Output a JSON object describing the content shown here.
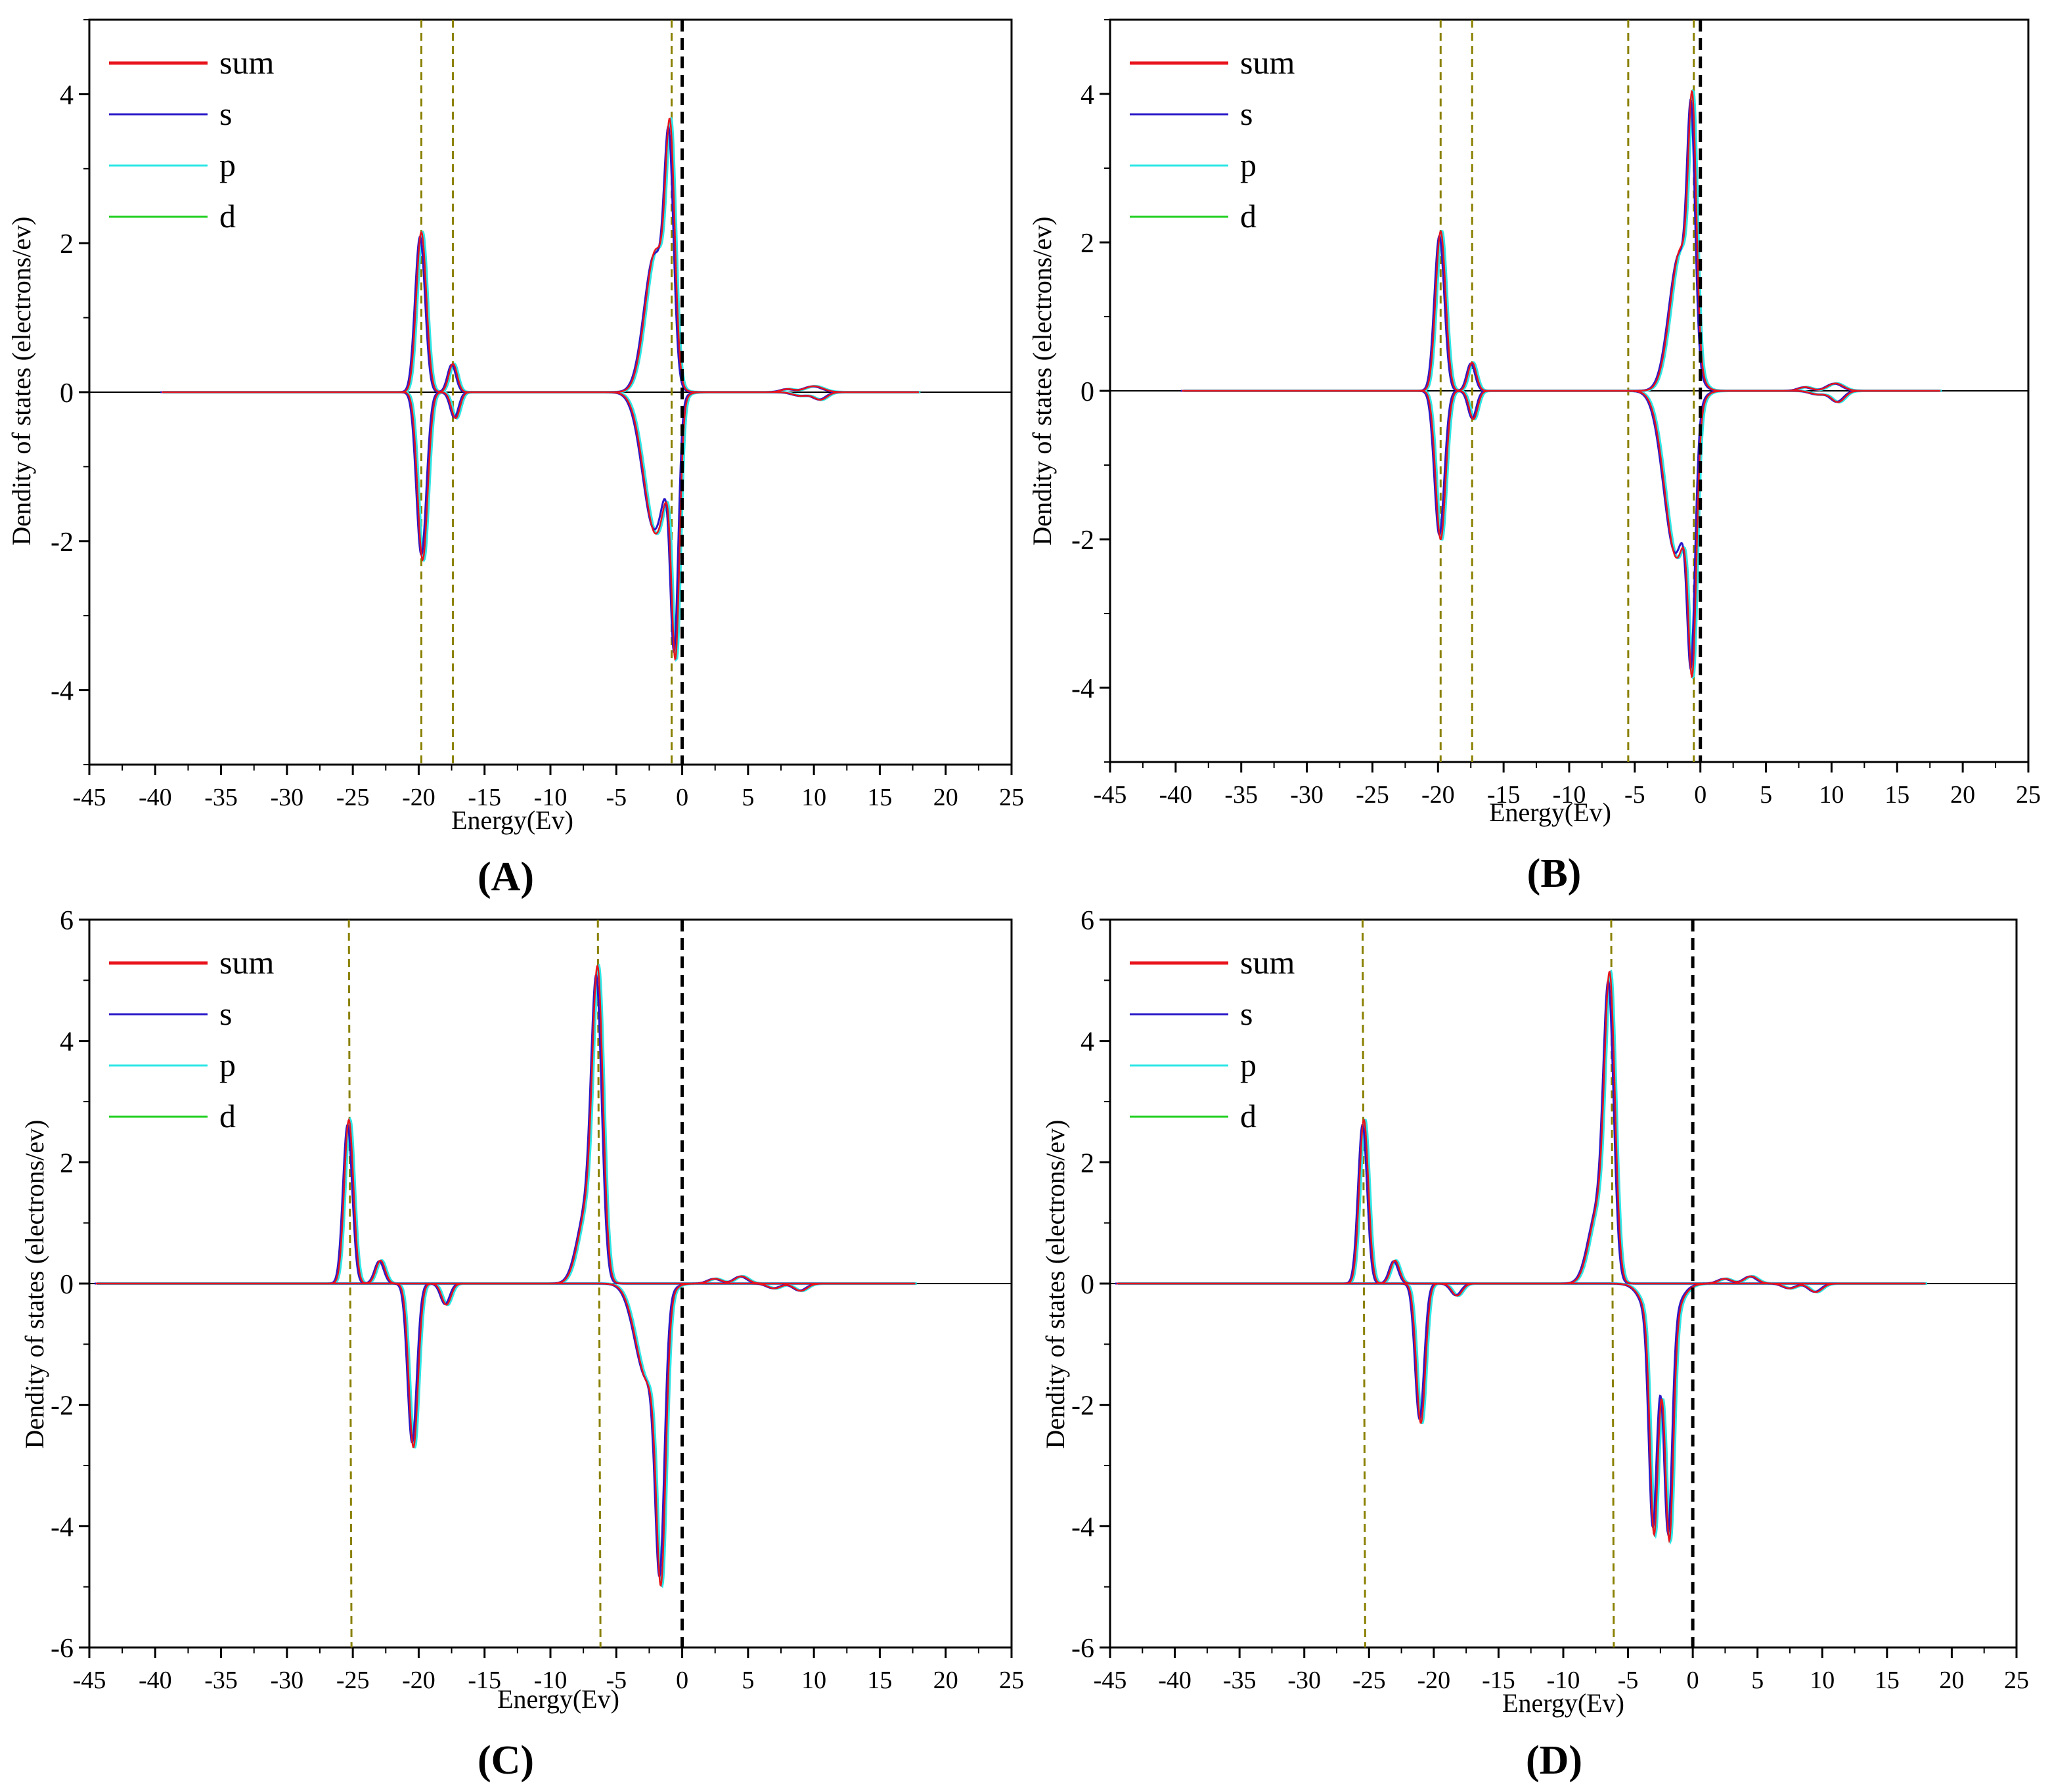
{
  "figure": {
    "colors": {
      "sum": "#e8141c",
      "s": "#2a18c8",
      "p": "#2ee6e6",
      "d": "#20d020",
      "marker": "#8a8000",
      "fermi": "#000000",
      "axis": "#000000"
    },
    "legend_labels": [
      "sum",
      "s",
      "p",
      "d"
    ]
  },
  "chart_data": [
    {
      "id": "A",
      "panel_label": "(A)",
      "type": "line",
      "xlabel": "Energy(Ev)",
      "ylabel": "Dendity of states (electrons/ev)",
      "xlim": [
        -45,
        25
      ],
      "ylim": [
        -5,
        5
      ],
      "xticks": [
        -45,
        -40,
        -35,
        -30,
        -25,
        -20,
        -15,
        -10,
        -5,
        0,
        5,
        10,
        15,
        20,
        25
      ],
      "yticks": [
        -4,
        -2,
        0,
        2,
        4
      ],
      "x_range": [
        -39.5,
        18.0
      ],
      "marker_lines": [
        -19.8,
        -17.4,
        -0.8
      ],
      "fermi_level": 0,
      "peaks_up": [
        {
          "center": -19.8,
          "height": 2.15,
          "width": 0.38
        },
        {
          "center": -17.4,
          "height": 0.38,
          "width": 0.32
        },
        {
          "center": -2.0,
          "height": 1.9,
          "width": 0.8
        },
        {
          "center": -0.9,
          "height": 2.9,
          "width": 0.35
        },
        {
          "center": 8.0,
          "height": 0.04,
          "width": 0.5
        },
        {
          "center": 10.0,
          "height": 0.08,
          "width": 0.7
        }
      ],
      "peaks_down": [
        {
          "center": -19.7,
          "height": 2.25,
          "width": 0.38
        },
        {
          "center": -17.2,
          "height": 0.35,
          "width": 0.32
        },
        {
          "center": -2.0,
          "height": 1.9,
          "width": 0.9
        },
        {
          "center": -0.5,
          "height": 3.1,
          "width": 0.3
        },
        {
          "center": 9.0,
          "height": 0.05,
          "width": 0.6
        },
        {
          "center": 10.5,
          "height": 0.1,
          "width": 0.5
        }
      ]
    },
    {
      "id": "B",
      "panel_label": "(B)",
      "type": "line",
      "xlabel": "Energy(Ev)",
      "ylabel": "Dendity of states (electrons/ev)",
      "xlim": [
        -45,
        25
      ],
      "ylim": [
        -5,
        5
      ],
      "xticks": [
        -45,
        -40,
        -35,
        -30,
        -25,
        -20,
        -15,
        -10,
        -5,
        0,
        5,
        10,
        15,
        20,
        25
      ],
      "yticks": [
        -4,
        -2,
        0,
        2,
        4
      ],
      "x_range": [
        -39.5,
        18.3
      ],
      "marker_lines": [
        -19.8,
        -17.4,
        -5.5,
        -0.5
      ],
      "fermi_level": 0,
      "peaks_up": [
        {
          "center": -19.8,
          "height": 2.15,
          "width": 0.38
        },
        {
          "center": -17.4,
          "height": 0.38,
          "width": 0.32
        },
        {
          "center": -1.5,
          "height": 1.9,
          "width": 0.8
        },
        {
          "center": -0.6,
          "height": 3.0,
          "width": 0.3
        },
        {
          "center": 8.0,
          "height": 0.05,
          "width": 0.5
        },
        {
          "center": 10.3,
          "height": 0.1,
          "width": 0.6
        }
      ],
      "peaks_down": [
        {
          "center": -19.8,
          "height": 2.0,
          "width": 0.38
        },
        {
          "center": -17.3,
          "height": 0.38,
          "width": 0.32
        },
        {
          "center": -1.8,
          "height": 2.25,
          "width": 0.9
        },
        {
          "center": -0.6,
          "height": 2.9,
          "width": 0.3
        },
        {
          "center": 9.0,
          "height": 0.05,
          "width": 0.6
        },
        {
          "center": 10.5,
          "height": 0.15,
          "width": 0.5
        }
      ]
    },
    {
      "id": "C",
      "panel_label": "(C)",
      "type": "line",
      "xlabel": "Energy(Ev)",
      "ylabel": "Dendity of states (electrons/ev)",
      "xlim": [
        -45,
        25
      ],
      "ylim": [
        -6,
        6
      ],
      "xticks": [
        -45,
        -40,
        -35,
        -30,
        -25,
        -20,
        -15,
        -10,
        -5,
        0,
        5,
        10,
        15,
        20,
        25
      ],
      "yticks": [
        -6,
        -4,
        -2,
        0,
        2,
        4,
        6
      ],
      "x_range": [
        -44.5,
        17.7
      ],
      "marker_lines": [
        -25.3,
        -6.4
      ],
      "fermi_level": 0,
      "peaks_up": [
        {
          "center": -25.3,
          "height": 2.7,
          "width": 0.35
        },
        {
          "center": -22.9,
          "height": 0.38,
          "width": 0.35
        },
        {
          "center": -7.2,
          "height": 1.2,
          "width": 0.7
        },
        {
          "center": -6.4,
          "height": 4.6,
          "width": 0.4
        },
        {
          "center": 2.5,
          "height": 0.08,
          "width": 0.5
        },
        {
          "center": 4.5,
          "height": 0.12,
          "width": 0.5
        }
      ],
      "peaks_down": [
        {
          "center": -20.4,
          "height": 2.7,
          "width": 0.35
        },
        {
          "center": -17.9,
          "height": 0.35,
          "width": 0.35
        },
        {
          "center": -2.6,
          "height": 1.6,
          "width": 0.9
        },
        {
          "center": -1.6,
          "height": 4.1,
          "width": 0.35
        },
        {
          "center": 7.0,
          "height": 0.08,
          "width": 0.5
        },
        {
          "center": 9.0,
          "height": 0.12,
          "width": 0.5
        }
      ]
    },
    {
      "id": "D",
      "panel_label": "(D)",
      "type": "line",
      "xlabel": "Energy(Ev)",
      "ylabel": "Dendity of states (electrons/ev)",
      "xlim": [
        -45,
        25
      ],
      "ylim": [
        -6,
        6
      ],
      "xticks": [
        -45,
        -40,
        -35,
        -30,
        -25,
        -20,
        -15,
        -10,
        -5,
        0,
        5,
        10,
        15,
        20,
        25
      ],
      "yticks": [
        -6,
        -4,
        -2,
        0,
        2,
        4,
        6
      ],
      "x_range": [
        -44.5,
        18.0
      ],
      "marker_lines": [
        -25.5,
        -6.3
      ],
      "fermi_level": 0,
      "peaks_up": [
        {
          "center": -25.4,
          "height": 2.7,
          "width": 0.35
        },
        {
          "center": -23.0,
          "height": 0.38,
          "width": 0.35
        },
        {
          "center": -7.3,
          "height": 1.2,
          "width": 0.7
        },
        {
          "center": -6.4,
          "height": 4.6,
          "width": 0.4
        },
        {
          "center": 2.5,
          "height": 0.08,
          "width": 0.5
        },
        {
          "center": 4.5,
          "height": 0.12,
          "width": 0.5
        }
      ],
      "peaks_down": [
        {
          "center": -21.0,
          "height": 2.3,
          "width": 0.35
        },
        {
          "center": -18.2,
          "height": 0.2,
          "width": 0.4
        },
        {
          "center": -3.0,
          "height": 3.3,
          "width": 0.3
        },
        {
          "center": -1.8,
          "height": 3.4,
          "width": 0.3
        },
        {
          "center": -2.4,
          "height": 1.0,
          "width": 1.0
        },
        {
          "center": 7.5,
          "height": 0.08,
          "width": 0.5
        },
        {
          "center": 9.5,
          "height": 0.14,
          "width": 0.5
        }
      ]
    }
  ]
}
